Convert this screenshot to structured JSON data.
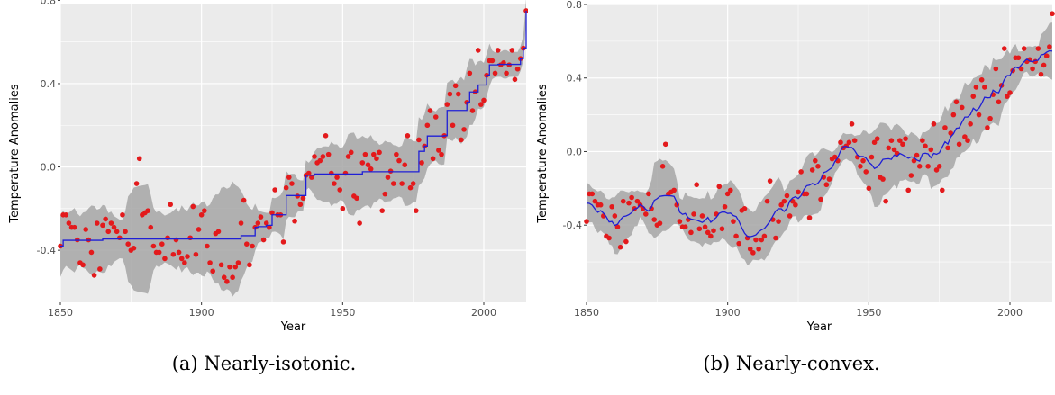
{
  "captions": [
    "(a) Nearly-isotonic.",
    "(b) Nearly-convex."
  ],
  "colors": {
    "panel_bg": "#ebebeb",
    "grid": "#ffffff",
    "ribbon": "#a6a6a6",
    "point": "#e31a1c",
    "fit_line": "#1f1fd6"
  },
  "chart_data": [
    {
      "type": "scatter",
      "title": "",
      "xlabel": "Year",
      "ylabel": "Temperature Anomalies",
      "xlim": [
        1850,
        2015
      ],
      "ylim": [
        -0.65,
        0.78
      ],
      "x_ticks": [
        "1850",
        "1900",
        "1950",
        "2000"
      ],
      "y_ticks": [
        "-0.4",
        "0.0",
        "0.4",
        "0.8"
      ],
      "grid": true,
      "overlays": [
        "step fit line",
        "confidence band"
      ],
      "series": [
        {
          "x": [
            1850,
            1851,
            1852,
            1853,
            1854,
            1855,
            1856,
            1857,
            1858,
            1859,
            1860,
            1861,
            1862,
            1863,
            1864,
            1865,
            1866,
            1867,
            1868,
            1869,
            1870,
            1871,
            1872,
            1873,
            1874,
            1875,
            1876,
            1877,
            1878,
            1879,
            1880,
            1881,
            1882,
            1883,
            1884,
            1885,
            1886,
            1887,
            1888,
            1889,
            1890,
            1891,
            1892,
            1893,
            1894,
            1895,
            1896,
            1897,
            1898,
            1899,
            1900,
            1901,
            1902,
            1903,
            1904,
            1905,
            1906,
            1907,
            1908,
            1909,
            1910,
            1911,
            1912,
            1913,
            1914,
            1915,
            1916,
            1917,
            1918,
            1919,
            1920,
            1921,
            1922,
            1923,
            1924,
            1925,
            1926,
            1927,
            1928,
            1929,
            1930,
            1931,
            1932,
            1933,
            1934,
            1935,
            1936,
            1937,
            1938,
            1939,
            1940,
            1941,
            1942,
            1943,
            1944,
            1945,
            1946,
            1947,
            1948,
            1949,
            1950,
            1951,
            1952,
            1953,
            1954,
            1955,
            1956,
            1957,
            1958,
            1959,
            1960,
            1961,
            1962,
            1963,
            1964,
            1965,
            1966,
            1967,
            1968,
            1969,
            1970,
            1971,
            1972,
            1973,
            1974,
            1975,
            1976,
            1977,
            1978,
            1979,
            1980,
            1981,
            1982,
            1983,
            1984,
            1985,
            1986,
            1987,
            1988,
            1989,
            1990,
            1991,
            1992,
            1993,
            1994,
            1995,
            1996,
            1997,
            1998,
            1999,
            2000,
            2001,
            2002,
            2003,
            2004,
            2005,
            2006,
            2007,
            2008,
            2009,
            2010,
            2011,
            2012,
            2013,
            2014,
            2015
          ],
          "y": [
            -0.38,
            -0.23,
            -0.23,
            -0.27,
            -0.29,
            -0.29,
            -0.35,
            -0.46,
            -0.47,
            -0.3,
            -0.35,
            -0.41,
            -0.52,
            -0.27,
            -0.49,
            -0.28,
            -0.25,
            -0.31,
            -0.27,
            -0.29,
            -0.31,
            -0.34,
            -0.23,
            -0.31,
            -0.37,
            -0.4,
            -0.39,
            -0.08,
            0.04,
            -0.23,
            -0.22,
            -0.21,
            -0.29,
            -0.38,
            -0.41,
            -0.41,
            -0.37,
            -0.44,
            -0.34,
            -0.18,
            -0.42,
            -0.35,
            -0.41,
            -0.44,
            -0.46,
            -0.43,
            -0.34,
            -0.19,
            -0.42,
            -0.3,
            -0.23,
            -0.21,
            -0.38,
            -0.46,
            -0.5,
            -0.32,
            -0.31,
            -0.47,
            -0.53,
            -0.55,
            -0.48,
            -0.53,
            -0.48,
            -0.46,
            -0.27,
            -0.16,
            -0.37,
            -0.47,
            -0.38,
            -0.29,
            -0.27,
            -0.24,
            -0.35,
            -0.27,
            -0.29,
            -0.22,
            -0.11,
            -0.23,
            -0.23,
            -0.36,
            -0.1,
            -0.05,
            -0.08,
            -0.26,
            -0.14,
            -0.18,
            -0.15,
            -0.04,
            -0.03,
            -0.05,
            0.05,
            0.02,
            0.03,
            0.05,
            0.15,
            0.06,
            -0.03,
            -0.08,
            -0.05,
            -0.11,
            -0.2,
            -0.03,
            0.05,
            0.07,
            -0.14,
            -0.15,
            -0.27,
            0.02,
            0.06,
            0.01,
            -0.01,
            0.06,
            0.04,
            0.07,
            -0.21,
            -0.13,
            -0.05,
            -0.02,
            -0.08,
            0.06,
            0.03,
            -0.08,
            0.01,
            0.15,
            -0.1,
            -0.08,
            -0.21,
            0.13,
            0.02,
            0.1,
            0.2,
            0.27,
            0.04,
            0.24,
            0.08,
            0.06,
            0.15,
            0.3,
            0.35,
            0.2,
            0.39,
            0.35,
            0.13,
            0.18,
            0.31,
            0.45,
            0.27,
            0.36,
            0.56,
            0.3,
            0.32,
            0.44,
            0.51,
            0.51,
            0.45,
            0.56,
            0.49,
            0.5,
            0.45,
            0.49,
            0.56,
            0.42,
            0.47,
            0.52,
            0.57,
            0.75
          ]
        }
      ]
    },
    {
      "type": "scatter",
      "title": "",
      "xlabel": "Year",
      "ylabel": "Temperature Anomalies",
      "xlim": [
        1850,
        2015
      ],
      "ylim": [
        -0.82,
        0.8
      ],
      "x_ticks": [
        "1850",
        "1900",
        "1950",
        "2000"
      ],
      "y_ticks": [
        "-0.4",
        "0.0",
        "0.4",
        "0.8"
      ],
      "grid": true,
      "overlays": [
        "piecewise-linear fit line",
        "confidence band"
      ],
      "series": [
        {
          "x": [
            1850,
            1851,
            1852,
            1853,
            1854,
            1855,
            1856,
            1857,
            1858,
            1859,
            1860,
            1861,
            1862,
            1863,
            1864,
            1865,
            1866,
            1867,
            1868,
            1869,
            1870,
            1871,
            1872,
            1873,
            1874,
            1875,
            1876,
            1877,
            1878,
            1879,
            1880,
            1881,
            1882,
            1883,
            1884,
            1885,
            1886,
            1887,
            1888,
            1889,
            1890,
            1891,
            1892,
            1893,
            1894,
            1895,
            1896,
            1897,
            1898,
            1899,
            1900,
            1901,
            1902,
            1903,
            1904,
            1905,
            1906,
            1907,
            1908,
            1909,
            1910,
            1911,
            1912,
            1913,
            1914,
            1915,
            1916,
            1917,
            1918,
            1919,
            1920,
            1921,
            1922,
            1923,
            1924,
            1925,
            1926,
            1927,
            1928,
            1929,
            1930,
            1931,
            1932,
            1933,
            1934,
            1935,
            1936,
            1937,
            1938,
            1939,
            1940,
            1941,
            1942,
            1943,
            1944,
            1945,
            1946,
            1947,
            1948,
            1949,
            1950,
            1951,
            1952,
            1953,
            1954,
            1955,
            1956,
            1957,
            1958,
            1959,
            1960,
            1961,
            1962,
            1963,
            1964,
            1965,
            1966,
            1967,
            1968,
            1969,
            1970,
            1971,
            1972,
            1973,
            1974,
            1975,
            1976,
            1977,
            1978,
            1979,
            1980,
            1981,
            1982,
            1983,
            1984,
            1985,
            1986,
            1987,
            1988,
            1989,
            1990,
            1991,
            1992,
            1993,
            1994,
            1995,
            1996,
            1997,
            1998,
            1999,
            2000,
            2001,
            2002,
            2003,
            2004,
            2005,
            2006,
            2007,
            2008,
            2009,
            2010,
            2011,
            2012,
            2013,
            2014,
            2015
          ],
          "y": [
            -0.38,
            -0.23,
            -0.23,
            -0.27,
            -0.29,
            -0.29,
            -0.35,
            -0.46,
            -0.47,
            -0.3,
            -0.35,
            -0.41,
            -0.52,
            -0.27,
            -0.49,
            -0.28,
            -0.25,
            -0.31,
            -0.27,
            -0.29,
            -0.31,
            -0.34,
            -0.23,
            -0.31,
            -0.37,
            -0.4,
            -0.39,
            -0.08,
            0.04,
            -0.23,
            -0.22,
            -0.21,
            -0.29,
            -0.38,
            -0.41,
            -0.41,
            -0.37,
            -0.44,
            -0.34,
            -0.18,
            -0.42,
            -0.35,
            -0.41,
            -0.44,
            -0.46,
            -0.43,
            -0.34,
            -0.19,
            -0.42,
            -0.3,
            -0.23,
            -0.21,
            -0.38,
            -0.46,
            -0.5,
            -0.32,
            -0.31,
            -0.47,
            -0.53,
            -0.55,
            -0.48,
            -0.53,
            -0.48,
            -0.46,
            -0.27,
            -0.16,
            -0.37,
            -0.47,
            -0.38,
            -0.29,
            -0.27,
            -0.24,
            -0.35,
            -0.27,
            -0.29,
            -0.22,
            -0.11,
            -0.23,
            -0.23,
            -0.36,
            -0.1,
            -0.05,
            -0.08,
            -0.26,
            -0.14,
            -0.18,
            -0.15,
            -0.04,
            -0.03,
            -0.05,
            0.05,
            0.02,
            0.03,
            0.05,
            0.15,
            0.06,
            -0.03,
            -0.08,
            -0.05,
            -0.11,
            -0.2,
            -0.03,
            0.05,
            0.07,
            -0.14,
            -0.15,
            -0.27,
            0.02,
            0.06,
            0.01,
            -0.01,
            0.06,
            0.04,
            0.07,
            -0.21,
            -0.13,
            -0.05,
            -0.02,
            -0.08,
            0.06,
            0.03,
            -0.08,
            0.01,
            0.15,
            -0.1,
            -0.08,
            -0.21,
            0.13,
            0.02,
            0.1,
            0.2,
            0.27,
            0.04,
            0.24,
            0.08,
            0.06,
            0.15,
            0.3,
            0.35,
            0.2,
            0.39,
            0.35,
            0.13,
            0.18,
            0.31,
            0.45,
            0.27,
            0.36,
            0.56,
            0.3,
            0.32,
            0.44,
            0.51,
            0.51,
            0.45,
            0.56,
            0.49,
            0.5,
            0.45,
            0.49,
            0.56,
            0.42,
            0.47,
            0.52,
            0.57,
            0.75
          ]
        }
      ]
    }
  ]
}
